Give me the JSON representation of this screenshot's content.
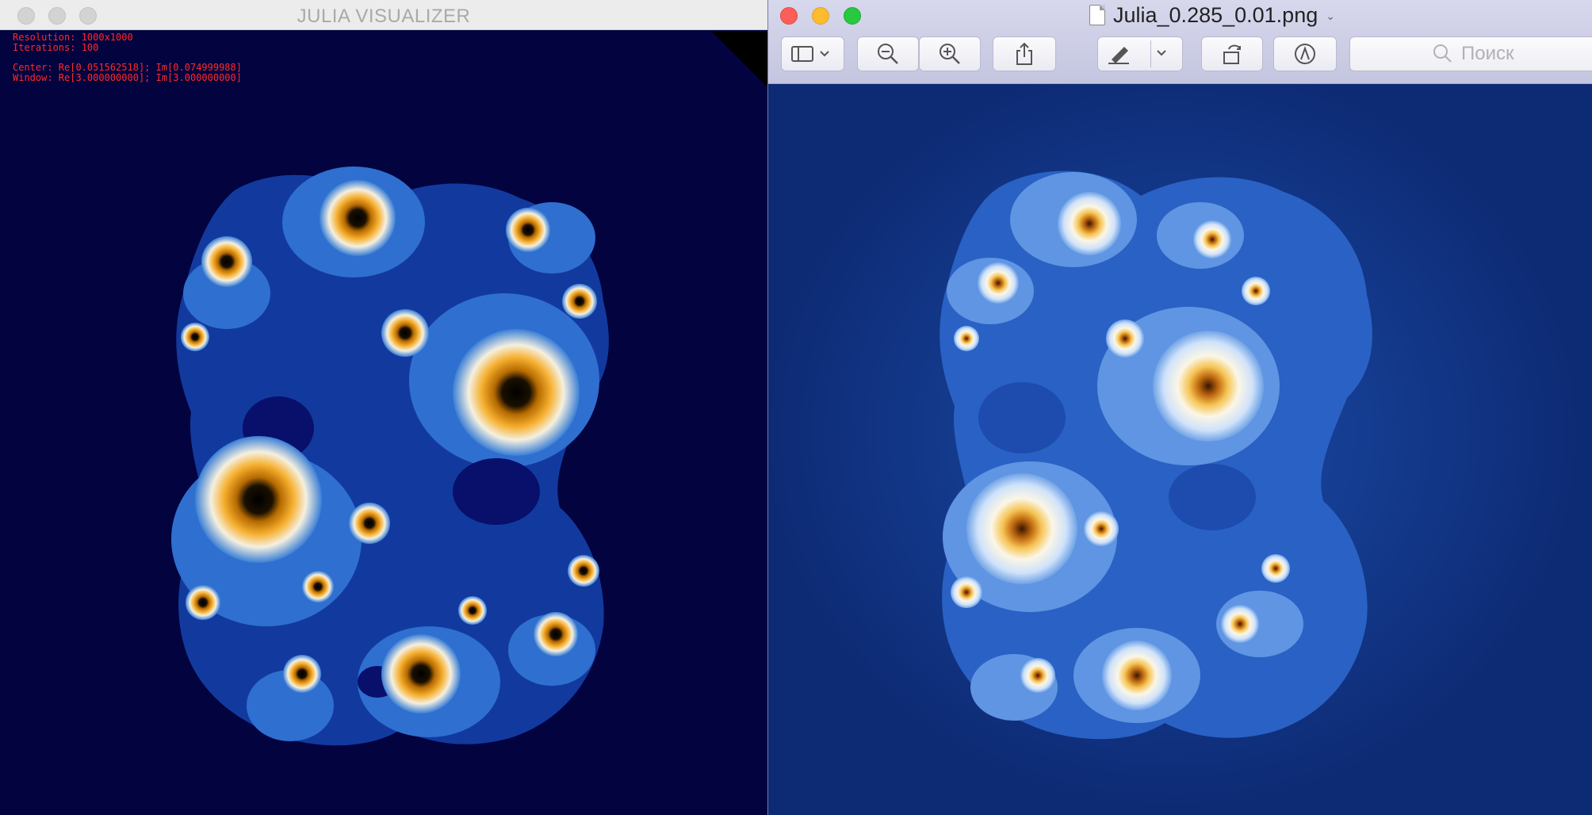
{
  "left_window": {
    "title": "JULIA VISUALIZER",
    "debug": {
      "resolution": "Resolution: 1000x1000",
      "iterations": "Iterations: 100",
      "center": "Center: Re[0.051562518]; Im[0.074999988]",
      "window": "Window: Re[3.000000000]; Im[3.000000000]"
    },
    "colors": {
      "background": "#02033f",
      "fractal_fill": "#123a9e",
      "accent": "#f3a623"
    }
  },
  "right_window": {
    "title": "Julia_0.285_0.01.png",
    "toolbar": {
      "sidebar_icon": "sidebar-icon",
      "zoom_out_icon": "zoom-out-icon",
      "zoom_in_icon": "zoom-in-icon",
      "share_icon": "share-icon",
      "markup_icon": "pen-icon",
      "rotate_icon": "rotate-icon",
      "annotate_icon": "markup-circle-icon"
    },
    "search": {
      "placeholder": "Поиск"
    },
    "colors": {
      "background": "#0d2a74",
      "fractal_fill": "#a8c8f0",
      "accent": "#e8a23a"
    }
  }
}
